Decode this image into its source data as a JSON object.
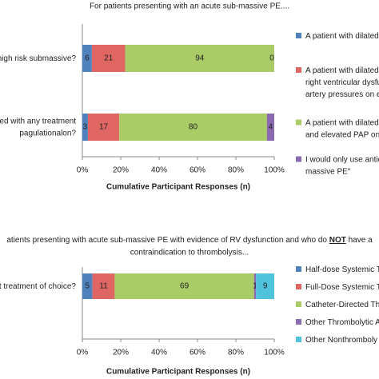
{
  "chart_data": [
    {
      "type": "bar",
      "orientation": "horizontal",
      "stack": "percent",
      "title": "For patients presenting with an acute sub-massive PE....",
      "categories": [
        "high risk submassive?",
        "ed with any treatment\npagulationalon?"
      ],
      "series": [
        {
          "name": "A patient with dilated",
          "color": "#4f81bd",
          "values": [
            6,
            3
          ]
        },
        {
          "name": "A patient with dilated\nright ventricular dysfu\nartery pressures on e",
          "color": "#e06663",
          "values": [
            21,
            17
          ]
        },
        {
          "name": "A patient with dilated\nand elevated PAP on",
          "color": "#a9cc66",
          "values": [
            94,
            80
          ]
        },
        {
          "name": "I would only use antic\nmassive PE\"",
          "color": "#8a6bb0",
          "values": [
            0,
            4
          ]
        }
      ],
      "xlim": [
        0,
        100
      ],
      "xticks": [
        {
          "value": 0,
          "label": "0%"
        },
        {
          "value": 20,
          "label": "20%"
        },
        {
          "value": 40,
          "label": "40%"
        },
        {
          "value": 60,
          "label": "60%"
        },
        {
          "value": 80,
          "label": "80%"
        },
        {
          "value": 100,
          "label": "100%"
        }
      ],
      "x_label": "Cumulative Participant Responses (n)"
    },
    {
      "type": "bar",
      "orientation": "horizontal",
      "stack": "percent",
      "title": {
        "before": "atients presenting with acute sub-massive PE with evidence of RV dysfunction and who do ",
        "emphasis": "NOT",
        "after": " have a",
        "line2": "contraindication to thrombolysis..."
      },
      "categories": [
        "t treatment of choice?"
      ],
      "series": [
        {
          "name": "Half-dose Systemic Th",
          "color": "#4f81bd",
          "values": [
            5
          ]
        },
        {
          "name": "Full-Dose Systemic Th",
          "color": "#e06663",
          "values": [
            11
          ]
        },
        {
          "name": "Catheter-Directed Th",
          "color": "#a9cc66",
          "values": [
            69
          ]
        },
        {
          "name": "Other Thrombolytic A",
          "color": "#8a6bb0",
          "values": [
            1
          ]
        },
        {
          "name": "Other Nonthromboly",
          "color": "#4fc3dc",
          "values": [
            9
          ]
        }
      ],
      "xlim": [
        0,
        100
      ],
      "xticks": [
        {
          "value": 0,
          "label": "0%"
        },
        {
          "value": 20,
          "label": "20%"
        },
        {
          "value": 40,
          "label": "40%"
        },
        {
          "value": 60,
          "label": "60%"
        },
        {
          "value": 80,
          "label": "80%"
        },
        {
          "value": 100,
          "label": "100%"
        }
      ],
      "x_label": "Cumulative Participant Responses (n)"
    }
  ]
}
